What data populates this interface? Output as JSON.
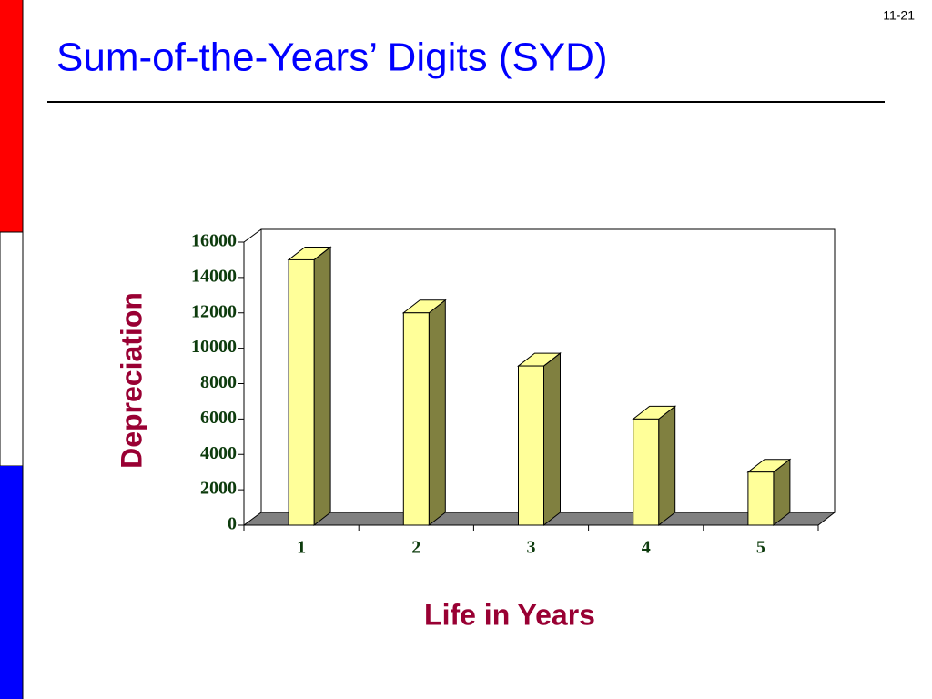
{
  "page_number": "11-21",
  "chart_data": {
    "type": "bar3d",
    "title": "Sum-of-the-Years’ Digits (SYD)",
    "x_label": "Life in Years",
    "y_label": "Depreciation",
    "categories": [
      "1",
      "2",
      "3",
      "4",
      "5"
    ],
    "values": [
      15000,
      12000,
      9000,
      6000,
      3000
    ],
    "color": "#ffff99",
    "ylim": [
      0,
      16000
    ],
    "yticks": [
      0,
      2000,
      4000,
      6000,
      8000,
      10000,
      12000,
      14000,
      16000
    ]
  }
}
